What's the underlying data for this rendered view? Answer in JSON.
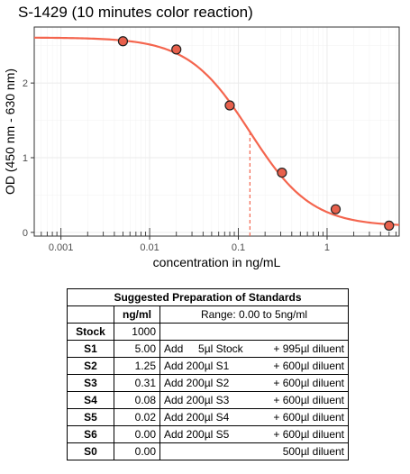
{
  "chart_data": {
    "type": "scatter",
    "title": "S-1429 (10 minutes color reaction)",
    "xlabel": "concentration in ng/mL",
    "ylabel": "OD (450 nm - 630 nm)",
    "x_scale": "log",
    "xlim": [
      0.0005,
      6.5
    ],
    "ylim": [
      -0.05,
      2.75
    ],
    "x_ticks": [
      0.001,
      0.01,
      0.1,
      1
    ],
    "x_tick_labels": [
      "0.001",
      "0.01",
      "0.1",
      "1"
    ],
    "y_ticks": [
      0,
      1,
      2
    ],
    "y_tick_labels": [
      "0",
      "1",
      "2"
    ],
    "grid": true,
    "points": {
      "x": [
        0.005,
        0.02,
        0.08,
        0.31,
        1.25,
        5.0
      ],
      "y": [
        2.56,
        2.45,
        1.7,
        0.8,
        0.31,
        0.09
      ]
    },
    "fit_curve": {
      "bottom": 0.08,
      "top": 2.61,
      "ec50": 0.135,
      "hill": 1.25
    },
    "ec50_marker": {
      "x": 0.135,
      "y": 1.35
    },
    "colors": {
      "curve": "#f4654e",
      "point_fill": "#e8604c",
      "point_stroke": "#222222",
      "ec50_line": "#f4654e",
      "grid": "#ebebeb",
      "panel_border": "#333333"
    }
  },
  "table": {
    "caption": "Suggested Preparation of Standards",
    "unit_header": "ng/ml",
    "range_header": "Range: 0.00 to 5ng/ml",
    "rows": [
      {
        "name": "Stock",
        "value": "1000",
        "left": "",
        "right": ""
      },
      {
        "name": "S1",
        "value": "5.00",
        "left": "Add     5µl Stock",
        "right": "+ 995µl diluent"
      },
      {
        "name": "S2",
        "value": "1.25",
        "left": "Add 200µl S1",
        "right": "+ 600µl diluent"
      },
      {
        "name": "S3",
        "value": "0.31",
        "left": "Add 200µl S2",
        "right": "+ 600µl diluent"
      },
      {
        "name": "S4",
        "value": "0.08",
        "left": "Add 200µl S3",
        "right": "+ 600µl diluent"
      },
      {
        "name": "S5",
        "value": "0.02",
        "left": "Add 200µl S4",
        "right": "+ 600µl diluent"
      },
      {
        "name": "S6",
        "value": "0.00",
        "left": "Add 200µl S5",
        "right": "+ 600µl diluent"
      },
      {
        "name": "S0",
        "value": "0.00",
        "left": "",
        "right": "500µl diluent"
      }
    ]
  }
}
